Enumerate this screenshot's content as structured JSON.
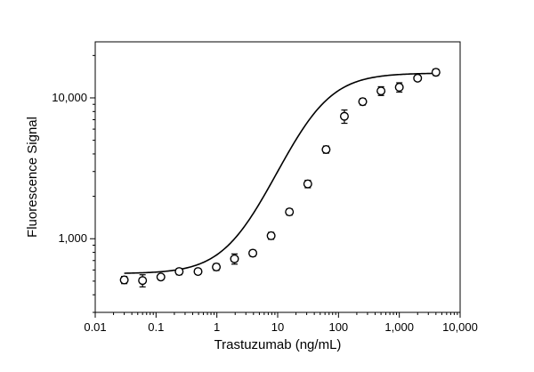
{
  "chart_data": {
    "type": "scatter",
    "title": "",
    "xlabel": "Trastuzumab (ng/mL)",
    "ylabel": "Fluorescence Signal",
    "xscale": "log",
    "yscale": "log",
    "xlim": [
      0.01,
      10000
    ],
    "ylim": [
      300,
      25000
    ],
    "grid": false,
    "legend": "none",
    "x_ticks": [
      {
        "value": 0.01,
        "label": "0.01"
      },
      {
        "value": 0.1,
        "label": "0.1"
      },
      {
        "value": 1,
        "label": "1"
      },
      {
        "value": 10,
        "label": "10"
      },
      {
        "value": 100,
        "label": "100"
      },
      {
        "value": 1000,
        "label": "1,000"
      },
      {
        "value": 10000,
        "label": "10,000"
      }
    ],
    "y_ticks": [
      {
        "value": 1000,
        "label": "1,000"
      },
      {
        "value": 10000,
        "label": "10,000"
      }
    ],
    "series": [
      {
        "marker": "open-circle",
        "color": "#000000",
        "points": [
          {
            "x": 0.03,
            "y": 510,
            "err": 30
          },
          {
            "x": 0.06,
            "y": 505,
            "err": 50
          },
          {
            "x": 0.12,
            "y": 535,
            "err": 25
          },
          {
            "x": 0.24,
            "y": 585,
            "err": 30
          },
          {
            "x": 0.49,
            "y": 585,
            "err": 25
          },
          {
            "x": 0.98,
            "y": 630,
            "err": 35
          },
          {
            "x": 1.95,
            "y": 720,
            "err": 60
          },
          {
            "x": 3.9,
            "y": 790,
            "err": 40
          },
          {
            "x": 7.8,
            "y": 1050,
            "err": 60
          },
          {
            "x": 15.6,
            "y": 1550,
            "err": 80
          },
          {
            "x": 31.25,
            "y": 2450,
            "err": 150
          },
          {
            "x": 62.5,
            "y": 4300,
            "err": 250
          },
          {
            "x": 125,
            "y": 7400,
            "err": 800
          },
          {
            "x": 250,
            "y": 9400,
            "err": 500
          },
          {
            "x": 500,
            "y": 11200,
            "err": 800
          },
          {
            "x": 1000,
            "y": 11900,
            "err": 900
          },
          {
            "x": 2000,
            "y": 13800,
            "err": 600
          },
          {
            "x": 4000,
            "y": 15200,
            "err": 800
          }
        ]
      }
    ],
    "fit": {
      "type": "4PL",
      "color": "#000000",
      "bottom": 565,
      "top": 15000,
      "ec50": 40,
      "hill": 1.15
    }
  }
}
